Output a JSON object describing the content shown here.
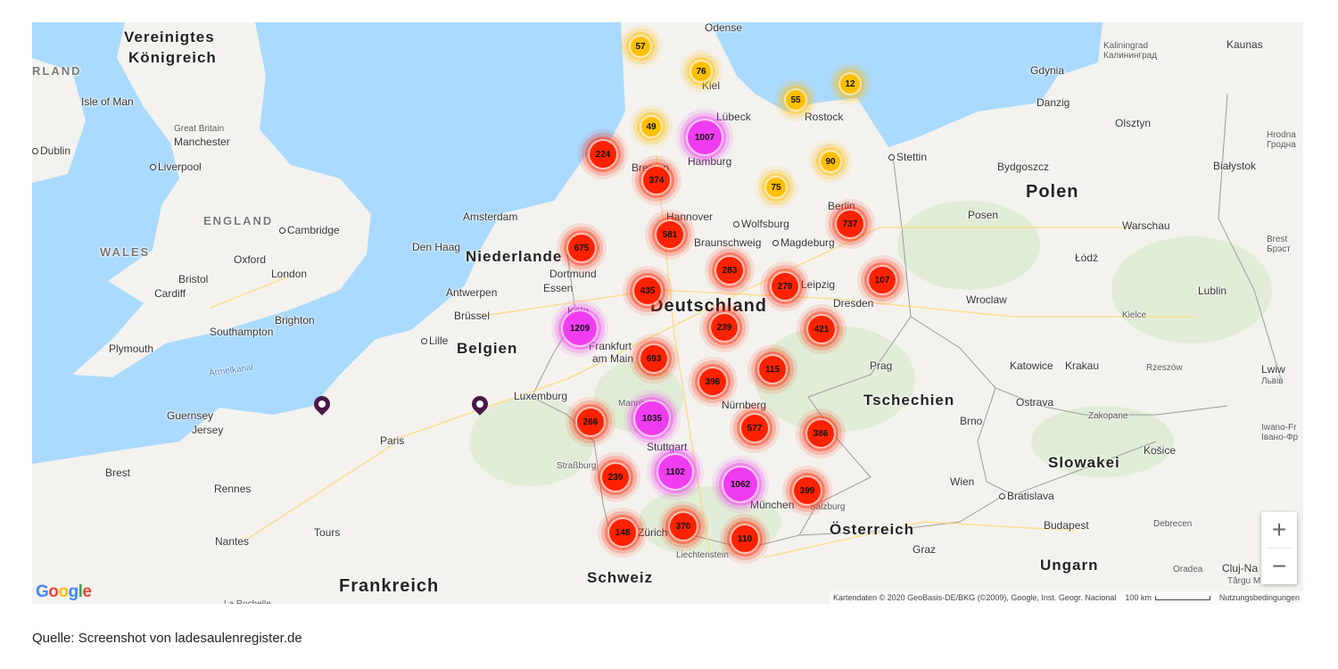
{
  "map": {
    "labels": {
      "vereinigtes": "Vereinigtes",
      "koenigreich": "Königreich",
      "irland": "RLAND",
      "isle_of_man": "Isle of Man",
      "great_britain": "Great Britain",
      "manchester": "Manchester",
      "dublin": "Dublin",
      "liverpool": "Liverpool",
      "england": "ENGLAND",
      "wales": "WALES",
      "cambridge": "Cambridge",
      "oxford": "Oxford",
      "london": "London",
      "bristol": "Bristol",
      "cardiff": "Cardiff",
      "brighton": "Brighton",
      "southampton": "Southampton",
      "plymouth": "Plymouth",
      "aermelkanal": "Ärmelkanal",
      "guernsey": "Guernsey",
      "jersey": "Jersey",
      "brest_fr": "Brest",
      "rennes": "Rennes",
      "nantes": "Nantes",
      "tours": "Tours",
      "paris": "Paris",
      "frankreich": "Frankreich",
      "lille": "Lille",
      "bruessel": "Brüssel",
      "belgien": "Belgien",
      "antwerpen": "Antwerpen",
      "amsterdam": "Amsterdam",
      "den_haag": "Den Haag",
      "niederlande": "Niederlande",
      "luxemburg": "Luxemburg",
      "dortmund": "Dortmund",
      "essen": "Essen",
      "koeln": "Köln",
      "hannover": "Hannover",
      "wolfsburg": "Wolfsburg",
      "braunschweig": "Braunschweig",
      "magdeburg": "Magdeburg",
      "leipzig": "Leipzig",
      "dresden": "Dresden",
      "deutschland": "Deutschland",
      "berlin": "Berlin",
      "bremen": "Bremen",
      "hamburg": "Hamburg",
      "luebeck": "Lübeck",
      "kiel": "Kiel",
      "rostock": "Rostock",
      "odense": "Odense",
      "stettin": "Stettin",
      "gdynia": "Gdynia",
      "danzig": "Danzig",
      "kaliningrad": "Kaliningrad",
      "kaliningrad_ru": "Калининград",
      "kaunas": "Kaunas",
      "olsztyn": "Olsztyn",
      "hrodna": "Hrodna",
      "hrodna_by": "Гродна",
      "bydgoszcz": "Bydgoszcz",
      "bialystok": "Białystok",
      "polen": "Polen",
      "posen": "Posen",
      "warschau": "Warschau",
      "lodz": "Łódź",
      "brest_by": "Brest",
      "brest_by_cyr": "Брэст",
      "wroclaw": "Wroclaw",
      "lublin": "Lublin",
      "kielce": "Kielce",
      "katowice": "Katowice",
      "krakau": "Krakau",
      "rzeszow": "Rzeszów",
      "lwiw": "Lwiw",
      "lwiw_ua": "Львів",
      "prag": "Prag",
      "tschechien": "Tschechien",
      "ostrava": "Ostrava",
      "brno": "Brno",
      "zakopane": "Zakopane",
      "kosice": "Košice",
      "iwano": "Iwano-Fr",
      "iwano_ua": "Івано-Фр",
      "slowakei": "Slowakei",
      "wien": "Wien",
      "bratislava": "Bratislava",
      "budapest": "Budapest",
      "debrecen": "Debrecen",
      "oesterreich": "Österreich",
      "graz": "Graz",
      "ungarn": "Ungarn",
      "oradea": "Oradea",
      "cluj": "Cluj-Na",
      "targu": "Târgu M",
      "nuernberg": "Nürnberg",
      "stuttgart": "Stuttgart",
      "strassburg": "Straßburg",
      "mannheim": "Mannheim",
      "frankfurt": "Frankfurt",
      "am_main": "am Main",
      "muenchen": "München",
      "salzburg": "Salzburg",
      "zuerich": "Zürich",
      "liechtenstein": "Liechtenstein",
      "schweiz": "Schweiz",
      "la_rochelle": "La Rochelle"
    },
    "cluster_colors": {
      "small": "#ffbf00",
      "medium": "#ff2200",
      "large": "#f03cf0"
    },
    "clusters": [
      {
        "count": "57",
        "tier": "small"
      },
      {
        "count": "76",
        "tier": "small"
      },
      {
        "count": "12",
        "tier": "small"
      },
      {
        "count": "55",
        "tier": "small"
      },
      {
        "count": "49",
        "tier": "small"
      },
      {
        "count": "1007",
        "tier": "large"
      },
      {
        "count": "224",
        "tier": "medium"
      },
      {
        "count": "374",
        "tier": "medium"
      },
      {
        "count": "90",
        "tier": "small"
      },
      {
        "count": "75",
        "tier": "small"
      },
      {
        "count": "737",
        "tier": "medium"
      },
      {
        "count": "581",
        "tier": "medium"
      },
      {
        "count": "675",
        "tier": "medium"
      },
      {
        "count": "283",
        "tier": "medium"
      },
      {
        "count": "279",
        "tier": "medium"
      },
      {
        "count": "107",
        "tier": "medium"
      },
      {
        "count": "435",
        "tier": "medium"
      },
      {
        "count": "1209",
        "tier": "large"
      },
      {
        "count": "239",
        "tier": "medium"
      },
      {
        "count": "421",
        "tier": "medium"
      },
      {
        "count": "693",
        "tier": "medium"
      },
      {
        "count": "115",
        "tier": "medium"
      },
      {
        "count": "396",
        "tier": "medium"
      },
      {
        "count": "1035",
        "tier": "large"
      },
      {
        "count": "266",
        "tier": "medium"
      },
      {
        "count": "577",
        "tier": "medium"
      },
      {
        "count": "386",
        "tier": "medium"
      },
      {
        "count": "1102",
        "tier": "large"
      },
      {
        "count": "239",
        "tier": "medium"
      },
      {
        "count": "1062",
        "tier": "large"
      },
      {
        "count": "399",
        "tier": "medium"
      },
      {
        "count": "370",
        "tier": "medium"
      },
      {
        "count": "148",
        "tier": "medium"
      },
      {
        "count": "110",
        "tier": "medium"
      }
    ],
    "zoom_in": "+",
    "zoom_out": "−",
    "attribution": "Kartendaten © 2020 GeoBasis-DE/BKG (©2009), Google, Inst. Geogr. Nacional",
    "scale": "100 km",
    "terms": "Nutzungsbedingungen",
    "logo": "Google"
  },
  "caption": "Quelle: Screenshot von ladesaulenregister.de"
}
